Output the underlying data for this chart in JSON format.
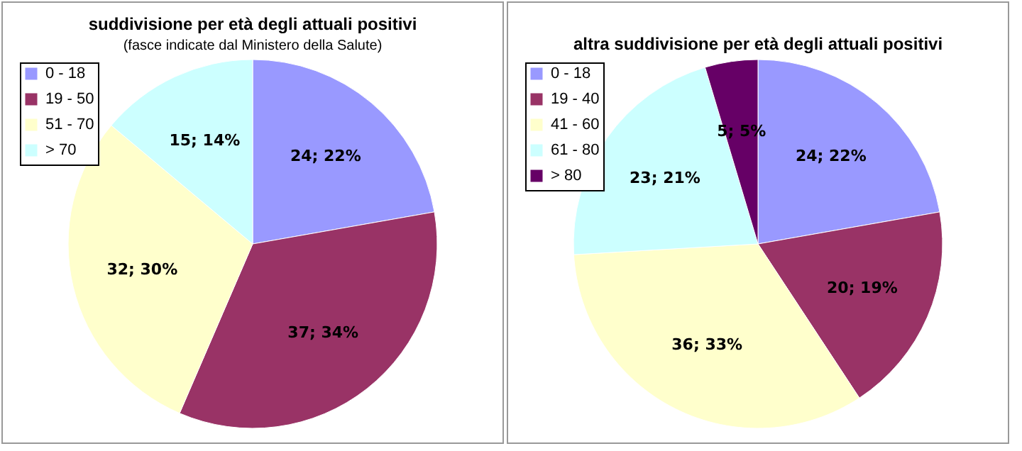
{
  "chart_data": [
    {
      "type": "pie",
      "title": "suddivisione per età degli attuali positivi",
      "subtitle": "(fasce indicate dal Ministero della Salute)",
      "categories": [
        "0 - 18",
        "19 - 50",
        "51 - 70",
        "> 70"
      ],
      "values": [
        24,
        37,
        32,
        15
      ],
      "colors": [
        "#9999ff",
        "#993366",
        "#ffffcc",
        "#ccffff"
      ],
      "value_labels": [
        "24; 22%",
        "37; 34%",
        "32; 30%",
        "15; 14%"
      ],
      "legend": "top left"
    },
    {
      "type": "pie",
      "title": "altra suddivisione per età degli attuali positivi",
      "categories": [
        "0 - 18",
        "19 - 40",
        "41 - 60",
        "61 - 80",
        "> 80"
      ],
      "values": [
        24,
        20,
        36,
        23,
        5
      ],
      "colors": [
        "#9999ff",
        "#993366",
        "#ffffcc",
        "#ccffff",
        "#660066"
      ],
      "value_labels": [
        "24; 22%",
        "20; 19%",
        "36; 33%",
        "23; 21%",
        "5; 5%"
      ],
      "legend": "top left"
    }
  ]
}
